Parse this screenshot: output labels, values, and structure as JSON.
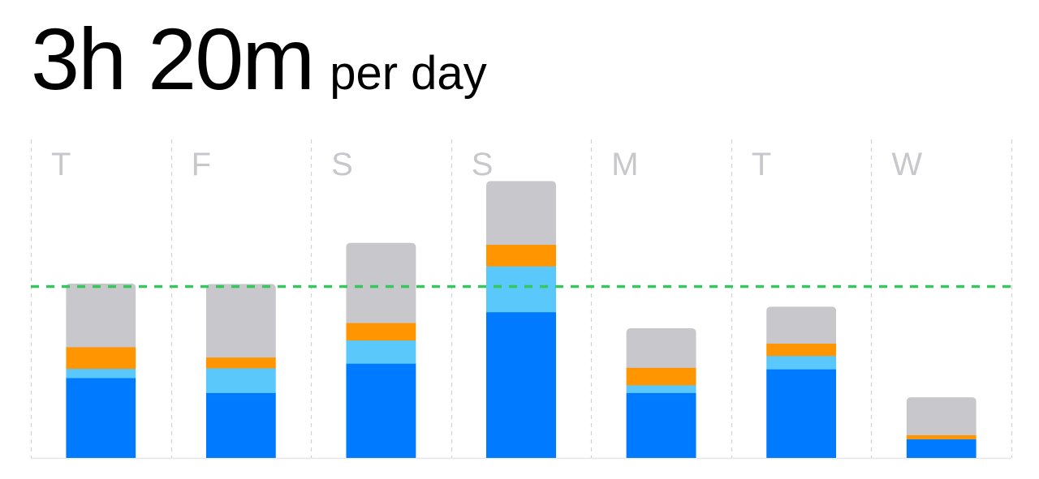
{
  "header": {
    "total": "3h 20m",
    "unit": "per day"
  },
  "chart_data": {
    "type": "bar",
    "stacked": true,
    "categories": [
      "T",
      "F",
      "S",
      "S",
      "M",
      "T",
      "W"
    ],
    "average_line": 3.33,
    "ylim": [
      0,
      5.5
    ],
    "grid": "vertical dashed",
    "colors": {
      "series": [
        "#007aff",
        "#5ac8fa",
        "#ff9500",
        "#c7c7cc"
      ],
      "average_line": "#34c759",
      "grid": "#d1d1d6",
      "label": "#c7c7cc"
    },
    "series": [
      {
        "values": [
          1.56,
          1.27,
          1.84,
          2.84,
          1.27,
          1.73,
          0.37
        ]
      },
      {
        "values": [
          0.18,
          0.48,
          0.45,
          0.89,
          0.15,
          0.26,
          0.0
        ]
      },
      {
        "values": [
          0.42,
          0.21,
          0.34,
          0.42,
          0.34,
          0.24,
          0.08
        ]
      },
      {
        "values": [
          1.23,
          1.42,
          1.55,
          1.23,
          0.76,
          0.71,
          0.73
        ]
      }
    ]
  }
}
